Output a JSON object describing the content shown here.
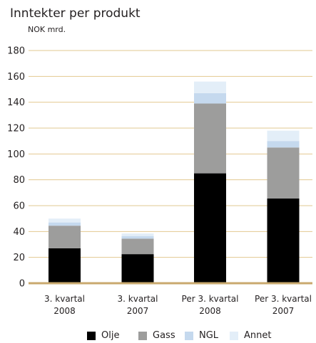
{
  "chart_data": {
    "type": "bar",
    "stacked": true,
    "title": "Inntekter per produkt",
    "subtitle": "NOK mrd.",
    "xlabel": "",
    "ylabel": "",
    "ylim": [
      0,
      180
    ],
    "yticks": [
      0,
      20,
      40,
      60,
      80,
      100,
      120,
      140,
      160,
      180
    ],
    "categories": [
      [
        "3. kvartal",
        "2008"
      ],
      [
        "3. kvartal",
        "2007"
      ],
      [
        "Per 3. kvartal",
        "2008"
      ],
      [
        "Per 3. kvartal",
        "2007"
      ]
    ],
    "series": [
      {
        "name": "Olje",
        "color": "#000000",
        "values": [
          27,
          22.5,
          85,
          65.5
        ]
      },
      {
        "name": "Gass",
        "color": "#9d9d9c",
        "values": [
          17.5,
          12,
          54,
          39.5
        ]
      },
      {
        "name": "NGL",
        "color": "#c5d9ee",
        "values": [
          2.5,
          2,
          8,
          5
        ]
      },
      {
        "name": "Annet",
        "color": "#e3eef8",
        "values": [
          3,
          2,
          9,
          8
        ]
      }
    ],
    "grid": true,
    "grid_color": "#e2c891",
    "legend_position": "bottom"
  }
}
